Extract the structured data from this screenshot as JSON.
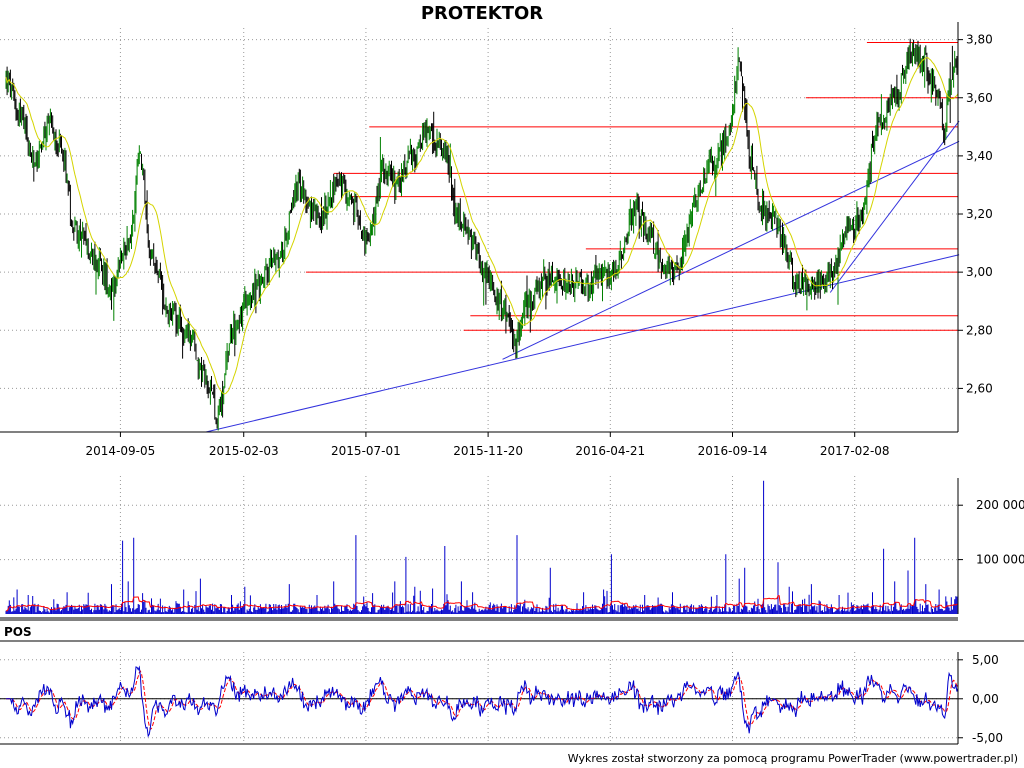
{
  "chart_data": [
    {
      "type": "candlestick",
      "title": "PROTEKTOR",
      "ylim": [
        2.45,
        3.84
      ],
      "y_ticks": [
        "3,80",
        "3,60",
        "3,40",
        "3,20",
        "3,00",
        "2,80",
        "2,60"
      ],
      "y_tick_values": [
        3.8,
        3.6,
        3.4,
        3.2,
        3.0,
        2.8,
        2.6
      ],
      "x_ticks": [
        "2014-09-05",
        "2015-02-03",
        "2015-07-01",
        "2015-11-20",
        "2016-04-21",
        "2016-09-14",
        "2017-02-08"
      ],
      "x_tick_index": [
        103,
        214,
        324,
        434,
        544,
        654,
        764
      ],
      "n_days": 858,
      "price_keypoints": [
        [
          0,
          3.66
        ],
        [
          12,
          3.55
        ],
        [
          25,
          3.38
        ],
        [
          40,
          3.5
        ],
        [
          50,
          3.42
        ],
        [
          62,
          3.15
        ],
        [
          80,
          3.05
        ],
        [
          95,
          2.95
        ],
        [
          112,
          3.12
        ],
        [
          120,
          3.42
        ],
        [
          130,
          3.05
        ],
        [
          150,
          2.85
        ],
        [
          165,
          2.78
        ],
        [
          178,
          2.64
        ],
        [
          190,
          2.52
        ],
        [
          205,
          2.82
        ],
        [
          225,
          2.95
        ],
        [
          245,
          3.05
        ],
        [
          265,
          3.3
        ],
        [
          280,
          3.18
        ],
        [
          300,
          3.3
        ],
        [
          315,
          3.22
        ],
        [
          325,
          3.1
        ],
        [
          340,
          3.35
        ],
        [
          352,
          3.3
        ],
        [
          365,
          3.4
        ],
        [
          380,
          3.48
        ],
        [
          395,
          3.42
        ],
        [
          405,
          3.2
        ],
        [
          420,
          3.1
        ],
        [
          432,
          2.98
        ],
        [
          445,
          2.9
        ],
        [
          458,
          2.76
        ],
        [
          470,
          2.9
        ],
        [
          485,
          2.98
        ],
        [
          520,
          2.96
        ],
        [
          540,
          2.98
        ],
        [
          555,
          3.05
        ],
        [
          565,
          3.22
        ],
        [
          580,
          3.12
        ],
        [
          592,
          3.02
        ],
        [
          605,
          3.0
        ],
        [
          620,
          3.25
        ],
        [
          635,
          3.38
        ],
        [
          650,
          3.45
        ],
        [
          660,
          3.72
        ],
        [
          670,
          3.4
        ],
        [
          680,
          3.22
        ],
        [
          690,
          3.18
        ],
        [
          700,
          3.1
        ],
        [
          712,
          2.96
        ],
        [
          728,
          2.95
        ],
        [
          742,
          2.98
        ],
        [
          760,
          3.15
        ],
        [
          770,
          3.2
        ],
        [
          785,
          3.5
        ],
        [
          800,
          3.6
        ],
        [
          815,
          3.75
        ],
        [
          828,
          3.72
        ],
        [
          838,
          3.62
        ],
        [
          845,
          3.5
        ],
        [
          850,
          3.65
        ],
        [
          858,
          3.75
        ]
      ],
      "horizontal_levels": [
        {
          "value": 3.79,
          "from_index": 775
        },
        {
          "value": 3.6,
          "from_index": 720
        },
        {
          "value": 3.5,
          "from_index": 327
        },
        {
          "value": 3.34,
          "from_index": 295
        },
        {
          "value": 3.26,
          "from_index": 310
        },
        {
          "value": 3.08,
          "from_index": 522
        },
        {
          "value": 3.0,
          "from_index": 270
        },
        {
          "value": 2.85,
          "from_index": 418
        },
        {
          "value": 2.8,
          "from_index": 412
        }
      ],
      "trend_lines": [
        {
          "from": [
            180,
            2.45
          ],
          "to": [
            858,
            3.06
          ]
        },
        {
          "from": [
            447,
            2.7
          ],
          "to": [
            858,
            3.45
          ]
        },
        {
          "from": [
            742,
            2.93
          ],
          "to": [
            858,
            3.52
          ]
        }
      ],
      "colors": {
        "up": "#008000",
        "down": "#000000",
        "moving_average": "#d4d400",
        "levels": "#ff0000",
        "trend": "#3333dd"
      }
    },
    {
      "type": "bar",
      "ylim": [
        0,
        250000
      ],
      "y_ticks": [
        "200 000",
        "100 000"
      ],
      "y_tick_values": [
        200000,
        100000
      ],
      "base_volume": 12000,
      "volume_spikes": [
        [
          3,
          25000
        ],
        [
          10,
          45000
        ],
        [
          20,
          35000
        ],
        [
          55,
          40000
        ],
        [
          95,
          55000
        ],
        [
          105,
          135000
        ],
        [
          110,
          60000
        ],
        [
          115,
          140000
        ],
        [
          160,
          45000
        ],
        [
          175,
          65000
        ],
        [
          215,
          50000
        ],
        [
          255,
          55000
        ],
        [
          280,
          35000
        ],
        [
          295,
          60000
        ],
        [
          315,
          145000
        ],
        [
          350,
          60000
        ],
        [
          360,
          105000
        ],
        [
          368,
          50000
        ],
        [
          395,
          125000
        ],
        [
          410,
          60000
        ],
        [
          420,
          40000
        ],
        [
          460,
          145000
        ],
        [
          490,
          85000
        ],
        [
          520,
          40000
        ],
        [
          545,
          110000
        ],
        [
          575,
          35000
        ],
        [
          600,
          40000
        ],
        [
          640,
          35000
        ],
        [
          648,
          110000
        ],
        [
          660,
          65000
        ],
        [
          665,
          85000
        ],
        [
          682,
          245000
        ],
        [
          695,
          95000
        ],
        [
          705,
          50000
        ],
        [
          725,
          55000
        ],
        [
          750,
          35000
        ],
        [
          780,
          40000
        ],
        [
          790,
          120000
        ],
        [
          800,
          60000
        ],
        [
          812,
          80000
        ],
        [
          818,
          140000
        ],
        [
          828,
          55000
        ],
        [
          840,
          45000
        ]
      ],
      "colors": {
        "bars": "#0000cc",
        "average": "#ff0000"
      }
    },
    {
      "type": "line",
      "title": "POS",
      "ylim": [
        -5.8,
        6.0
      ],
      "y_ticks": [
        "5,00",
        "0,00",
        "-5,00"
      ],
      "y_tick_values": [
        5.0,
        0.0,
        -5.0
      ],
      "zero_line": 0,
      "colors": {
        "pos": "#0000cc",
        "signal": "#ff0000"
      }
    }
  ],
  "footer": "Wykres został stworzony za pomocą programu PowerTrader (www.powertrader.pl)"
}
